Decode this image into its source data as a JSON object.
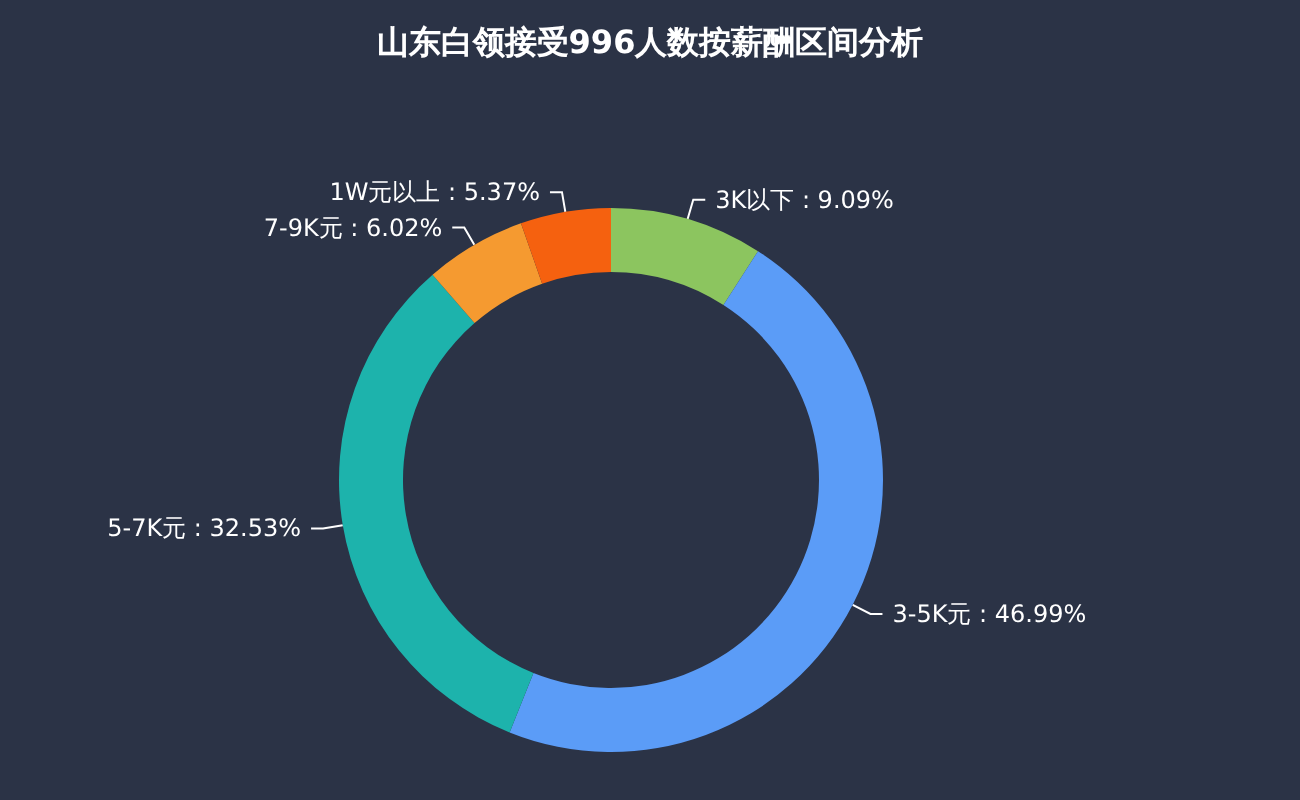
{
  "chart_data": {
    "type": "donut",
    "title": "山东白领接受996人数按薪酬区间分析",
    "categories": [
      "3K以下",
      "3-5K元",
      "5-7K元",
      "7-9K元",
      "1W元以上"
    ],
    "values": [
      9.09,
      46.99,
      32.53,
      6.02,
      5.37
    ],
    "value_labels": [
      "9.09%",
      "46.99%",
      "32.53%",
      "6.02%",
      "5.37%"
    ],
    "colors": [
      "#8cc55f",
      "#5b9cf7",
      "#1db3ac",
      "#f59a30",
      "#f5610f"
    ],
    "legend": false
  }
}
